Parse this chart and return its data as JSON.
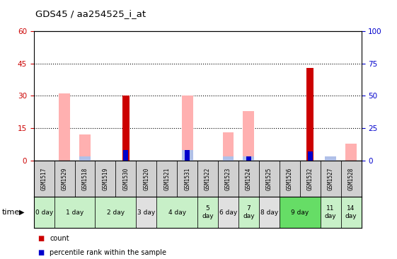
{
  "title": "GDS45 / aa254525_i_at",
  "samples": [
    "GSM1517",
    "GSM1529",
    "GSM1518",
    "GSM1519",
    "GSM1530",
    "GSM1520",
    "GSM1521",
    "GSM1531",
    "GSM1522",
    "GSM1523",
    "GSM1524",
    "GSM1525",
    "GSM1526",
    "GSM1532",
    "GSM1527",
    "GSM1528"
  ],
  "count_values": [
    0,
    0,
    0,
    0,
    30,
    0,
    0,
    0,
    0,
    0,
    0,
    0,
    0,
    43,
    0,
    0
  ],
  "rank_values": [
    0,
    0,
    0,
    0,
    8,
    0,
    0,
    8,
    0,
    0,
    3,
    0,
    0,
    7,
    0,
    0
  ],
  "absent_value": [
    0,
    31,
    12,
    0,
    0,
    0,
    0,
    30,
    0,
    13,
    23,
    0,
    0,
    0,
    0,
    8
  ],
  "absent_rank": [
    0,
    0,
    3,
    0,
    0,
    0,
    0,
    8,
    0,
    3,
    3,
    0,
    0,
    0,
    3,
    0
  ],
  "time_groups": [
    {
      "label": "0 day",
      "start": 0,
      "end": 1,
      "color": "#c8f0c8"
    },
    {
      "label": "1 day",
      "start": 1,
      "end": 3,
      "color": "#c8f0c8"
    },
    {
      "label": "2 day",
      "start": 3,
      "end": 5,
      "color": "#c8f0c8"
    },
    {
      "label": "3 day",
      "start": 5,
      "end": 6,
      "color": "#e0e0e0"
    },
    {
      "label": "4 day",
      "start": 6,
      "end": 8,
      "color": "#c8f0c8"
    },
    {
      "label": "5\nday",
      "start": 8,
      "end": 9,
      "color": "#c8f0c8"
    },
    {
      "label": "6 day",
      "start": 9,
      "end": 10,
      "color": "#e0e0e0"
    },
    {
      "label": "7\nday",
      "start": 10,
      "end": 11,
      "color": "#c8f0c8"
    },
    {
      "label": "8 day",
      "start": 11,
      "end": 12,
      "color": "#e0e0e0"
    },
    {
      "label": "9 day",
      "start": 12,
      "end": 14,
      "color": "#66dd66"
    },
    {
      "label": "11\nday",
      "start": 14,
      "end": 15,
      "color": "#c8f0c8"
    },
    {
      "label": "14\nday",
      "start": 15,
      "end": 16,
      "color": "#c8f0c8"
    }
  ],
  "ylim_left": [
    0,
    60
  ],
  "ylim_right": [
    0,
    100
  ],
  "yticks_left": [
    0,
    15,
    30,
    45,
    60
  ],
  "yticks_right": [
    0,
    25,
    50,
    75,
    100
  ],
  "color_count": "#cc0000",
  "color_rank": "#0000cc",
  "color_absent_value": "#ffb0b0",
  "color_absent_rank": "#b0c0e8",
  "sample_bg": "#d0d0d0",
  "plot_bg": "#ffffff"
}
